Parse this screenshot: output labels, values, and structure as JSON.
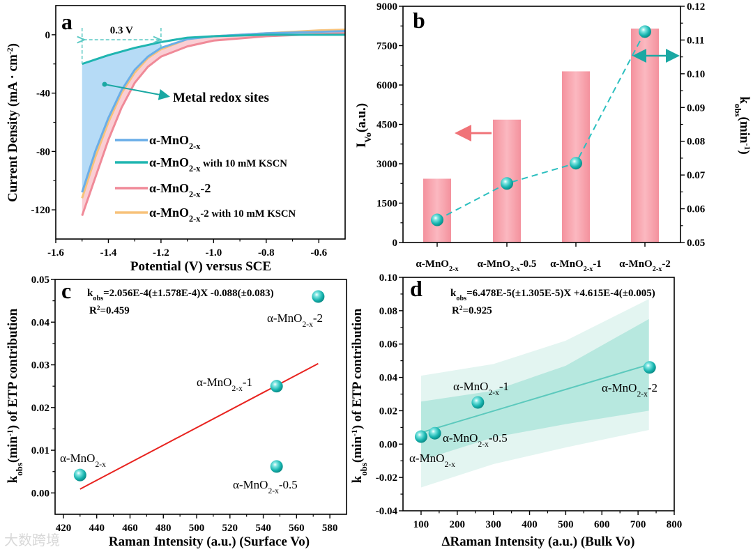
{
  "panels": [
    "a",
    "b",
    "c",
    "d"
  ],
  "watermark": "大数跨境",
  "chart_data": [
    {
      "type": "line",
      "panel": "a",
      "xlim": [
        -1.6,
        -0.5
      ],
      "ylim": [
        -140,
        20
      ],
      "xticks": [
        -1.6,
        -1.4,
        -1.2,
        -1.0,
        -0.8,
        -0.6
      ],
      "xticklabels": [
        "-1.6",
        "-1.4",
        "-1.2",
        "-1.0",
        "-0.8",
        "-0.6"
      ],
      "yticks": [
        0,
        -40,
        -80,
        -120
      ],
      "yticklabels": [
        "0",
        "-40",
        "-80",
        "-120"
      ],
      "xlabel": [
        [
          "Potential (V) versus SCE",
          ""
        ]
      ],
      "ylabel": [
        [
          "Current Density (mA · cm",
          ""
        ],
        [
          "-2",
          "sup"
        ],
        [
          ")",
          ""
        ]
      ],
      "x": [
        -1.5,
        -1.45,
        -1.4,
        -1.35,
        -1.3,
        -1.25,
        -1.2,
        -1.1,
        -1.0,
        -0.8,
        -0.6,
        -0.5
      ],
      "series": [
        {
          "name": [
            [
              "α-MnO",
              ""
            ],
            [
              "2-x",
              "sub"
            ]
          ],
          "color": "#6aaee8",
          "y": [
            -108,
            -80,
            -57,
            -38,
            -24,
            -15,
            -9,
            -3,
            -1,
            1,
            2,
            2.5
          ]
        },
        {
          "name": [
            [
              "α-MnO",
              ""
            ],
            [
              "2-x",
              "sub"
            ],
            [
              " with 10 mM KSCN",
              "small"
            ]
          ],
          "color": "#1fb5b0",
          "y": [
            -20,
            -17,
            -14,
            -11.5,
            -9,
            -7,
            -5,
            -2,
            -1,
            0,
            0,
            0
          ]
        },
        {
          "name": [
            [
              "α-MnO",
              ""
            ],
            [
              "2-x",
              "sub"
            ],
            [
              "-2",
              ""
            ]
          ],
          "color": "#f08a98",
          "y": [
            -124,
            -98,
            -72,
            -50,
            -33,
            -22,
            -15,
            -8,
            -4,
            -1,
            0.5,
            1
          ]
        },
        {
          "name": [
            [
              "α-MnO",
              ""
            ],
            [
              "2-x",
              "sub"
            ],
            [
              "-2 with 10 mM KSCN",
              "small"
            ]
          ],
          "color": "#f7c27a",
          "y": [
            -112,
            -84,
            -60,
            -40,
            -26,
            -16,
            -10,
            -3,
            -1,
            1,
            3,
            3.5
          ]
        }
      ],
      "annotations": {
        "gap_label": "0.3 V",
        "gap_range": [
          -1.5,
          -1.2
        ],
        "redox_label": "Metal redox sites"
      }
    },
    {
      "type": "bar",
      "panel": "b",
      "categories": [
        [
          [
            "α-MnO",
            ""
          ],
          [
            "2-x",
            "sub"
          ]
        ],
        [
          [
            "α-MnO",
            ""
          ],
          [
            "2-x",
            "sub"
          ],
          [
            "-0.5",
            ""
          ]
        ],
        [
          [
            "α-MnO",
            ""
          ],
          [
            "2-x",
            "sub"
          ],
          [
            "-1",
            ""
          ]
        ],
        [
          [
            "α-MnO",
            ""
          ],
          [
            "2-x",
            "sub"
          ],
          [
            "-2",
            ""
          ]
        ]
      ],
      "values": [
        2430,
        4680,
        6520,
        8150
      ],
      "kobs": [
        0.0567,
        0.0675,
        0.0735,
        0.1125
      ],
      "ylim": [
        0,
        9000
      ],
      "y2lim": [
        0.05,
        0.12
      ],
      "yticks": [
        0,
        1500,
        3000,
        4500,
        6000,
        7500,
        9000
      ],
      "yticklabels": [
        "0",
        "1500",
        "3000",
        "4500",
        "6000",
        "7500",
        "9000"
      ],
      "y2ticks": [
        0.05,
        0.06,
        0.07,
        0.08,
        0.09,
        0.1,
        0.11,
        0.12
      ],
      "y2ticklabels": [
        "0.05",
        "0.06",
        "0.07",
        "0.08",
        "0.09",
        "0.10",
        "0.11",
        "0.12"
      ],
      "ylabel": [
        [
          "I",
          ""
        ],
        [
          "Vo",
          "sub"
        ],
        [
          "(a.u.)",
          ""
        ]
      ],
      "y2label": [
        [
          "k",
          ""
        ],
        [
          "obs",
          "sub"
        ],
        [
          "(min",
          ""
        ],
        [
          "-1",
          "sup"
        ],
        [
          ")",
          ""
        ]
      ],
      "bar_color": "#f5909c",
      "line_color": "#1fb5b0"
    },
    {
      "type": "scatter",
      "panel": "c",
      "xlim": [
        415,
        590
      ],
      "ylim": [
        -0.005,
        0.05
      ],
      "xticks": [
        420,
        440,
        460,
        480,
        500,
        520,
        540,
        560,
        580
      ],
      "xticklabels": [
        "420",
        "440",
        "460",
        "480",
        "500",
        "520",
        "540",
        "560",
        "580"
      ],
      "yticks": [
        0,
        0.01,
        0.02,
        0.03,
        0.04,
        0.05
      ],
      "yticklabels": [
        "0.00",
        "0.01",
        "0.02",
        "0.03",
        "0.04",
        "0.05"
      ],
      "xlabel": [
        [
          "Raman Intensity (a.u.) (Surface Vo)",
          ""
        ]
      ],
      "ylabel": [
        [
          "k",
          ""
        ],
        [
          "obs",
          "sub"
        ],
        [
          "(min",
          ""
        ],
        [
          "-1",
          "sup"
        ],
        [
          ") of ETP contribution",
          ""
        ]
      ],
      "points": [
        {
          "x": 430,
          "y": 0.0042,
          "label": [
            [
              "α-MnO",
              ""
            ],
            [
              "2-x",
              "sub"
            ]
          ]
        },
        {
          "x": 548,
          "y": 0.0062,
          "label": [
            [
              "α-MnO",
              ""
            ],
            [
              "2-x",
              "sub"
            ],
            [
              "-0.5",
              ""
            ]
          ]
        },
        {
          "x": 548,
          "y": 0.025,
          "label": [
            [
              "α-MnO",
              ""
            ],
            [
              "2-x",
              "sub"
            ],
            [
              "-1",
              ""
            ]
          ]
        },
        {
          "x": 573,
          "y": 0.046,
          "label": [
            [
              "α-MnO",
              ""
            ],
            [
              "2-x",
              "sub"
            ],
            [
              "-2",
              ""
            ]
          ]
        }
      ],
      "fit": {
        "x": [
          430,
          573
        ],
        "y": [
          0.0009,
          0.0303
        ],
        "color": "#e8231f"
      },
      "equation": [
        [
          "k",
          ""
        ],
        [
          "obs",
          "sub"
        ],
        [
          "=2.056E-4(±1.578E-4)X -0.088(±0.083)",
          ""
        ]
      ],
      "r2": [
        [
          "R",
          ""
        ],
        [
          "2",
          "sup"
        ],
        [
          "=0.459",
          ""
        ]
      ]
    },
    {
      "type": "scatter",
      "panel": "d",
      "xlim": [
        50,
        800
      ],
      "ylim": [
        -0.04,
        0.1
      ],
      "xticks": [
        100,
        200,
        300,
        400,
        500,
        600,
        700,
        800
      ],
      "xticklabels": [
        "100",
        "200",
        "300",
        "400",
        "500",
        "600",
        "700",
        "800"
      ],
      "yticks": [
        -0.04,
        -0.02,
        0,
        0.02,
        0.04,
        0.06,
        0.08,
        0.1
      ],
      "yticklabels": [
        "-0.04",
        "-0.02",
        "0.00",
        "0.02",
        "0.04",
        "0.06",
        "0.08",
        "0.10"
      ],
      "xlabel": [
        [
          "ΔRaman Intensity (a.u.) (Bulk Vo)",
          ""
        ]
      ],
      "ylabel": [
        [
          "k",
          ""
        ],
        [
          "obs",
          "sub"
        ],
        [
          "(min",
          ""
        ],
        [
          "-1",
          "sup"
        ],
        [
          ") of ETP contribution",
          ""
        ]
      ],
      "points": [
        {
          "x": 100,
          "y": 0.0045,
          "label": [
            [
              "α-MnO",
              ""
            ],
            [
              "2-x",
              "sub"
            ]
          ]
        },
        {
          "x": 138,
          "y": 0.0065,
          "label": [
            [
              "α-MnO",
              ""
            ],
            [
              "2-x",
              "sub"
            ],
            [
              "-0.5",
              ""
            ]
          ]
        },
        {
          "x": 257,
          "y": 0.025,
          "label": [
            [
              "α-MnO",
              ""
            ],
            [
              "2-x",
              "sub"
            ],
            [
              "-1",
              ""
            ]
          ]
        },
        {
          "x": 732,
          "y": 0.046,
          "label": [
            [
              "α-MnO",
              ""
            ],
            [
              "2-x",
              "sub"
            ],
            [
              "-2",
              ""
            ]
          ]
        }
      ],
      "fit": {
        "x": [
          100,
          730
        ],
        "y": [
          0.0069,
          0.0477
        ],
        "color": "#5cc9bd"
      },
      "bands": {
        "x": [
          100,
          300,
          500,
          730
        ],
        "outer_upper": [
          0.041,
          0.048,
          0.062,
          0.087
        ],
        "outer_lower": [
          -0.026,
          -0.012,
          -0.002,
          0.0085
        ],
        "inner_upper": [
          0.0255,
          0.032,
          0.047,
          0.075
        ],
        "inner_lower": [
          -0.0097,
          0.004,
          0.012,
          0.02
        ],
        "outer_color": "#e3f5f1",
        "inner_color": "#b7e8df"
      },
      "equation": [
        [
          "k",
          ""
        ],
        [
          "obs",
          "sub"
        ],
        [
          "=6.478E-5(±1.305E-5)X +4.615E-4(±0.005)",
          ""
        ]
      ],
      "r2": [
        [
          "R",
          ""
        ],
        [
          "2",
          "sup"
        ],
        [
          "=0.925",
          ""
        ]
      ]
    }
  ]
}
